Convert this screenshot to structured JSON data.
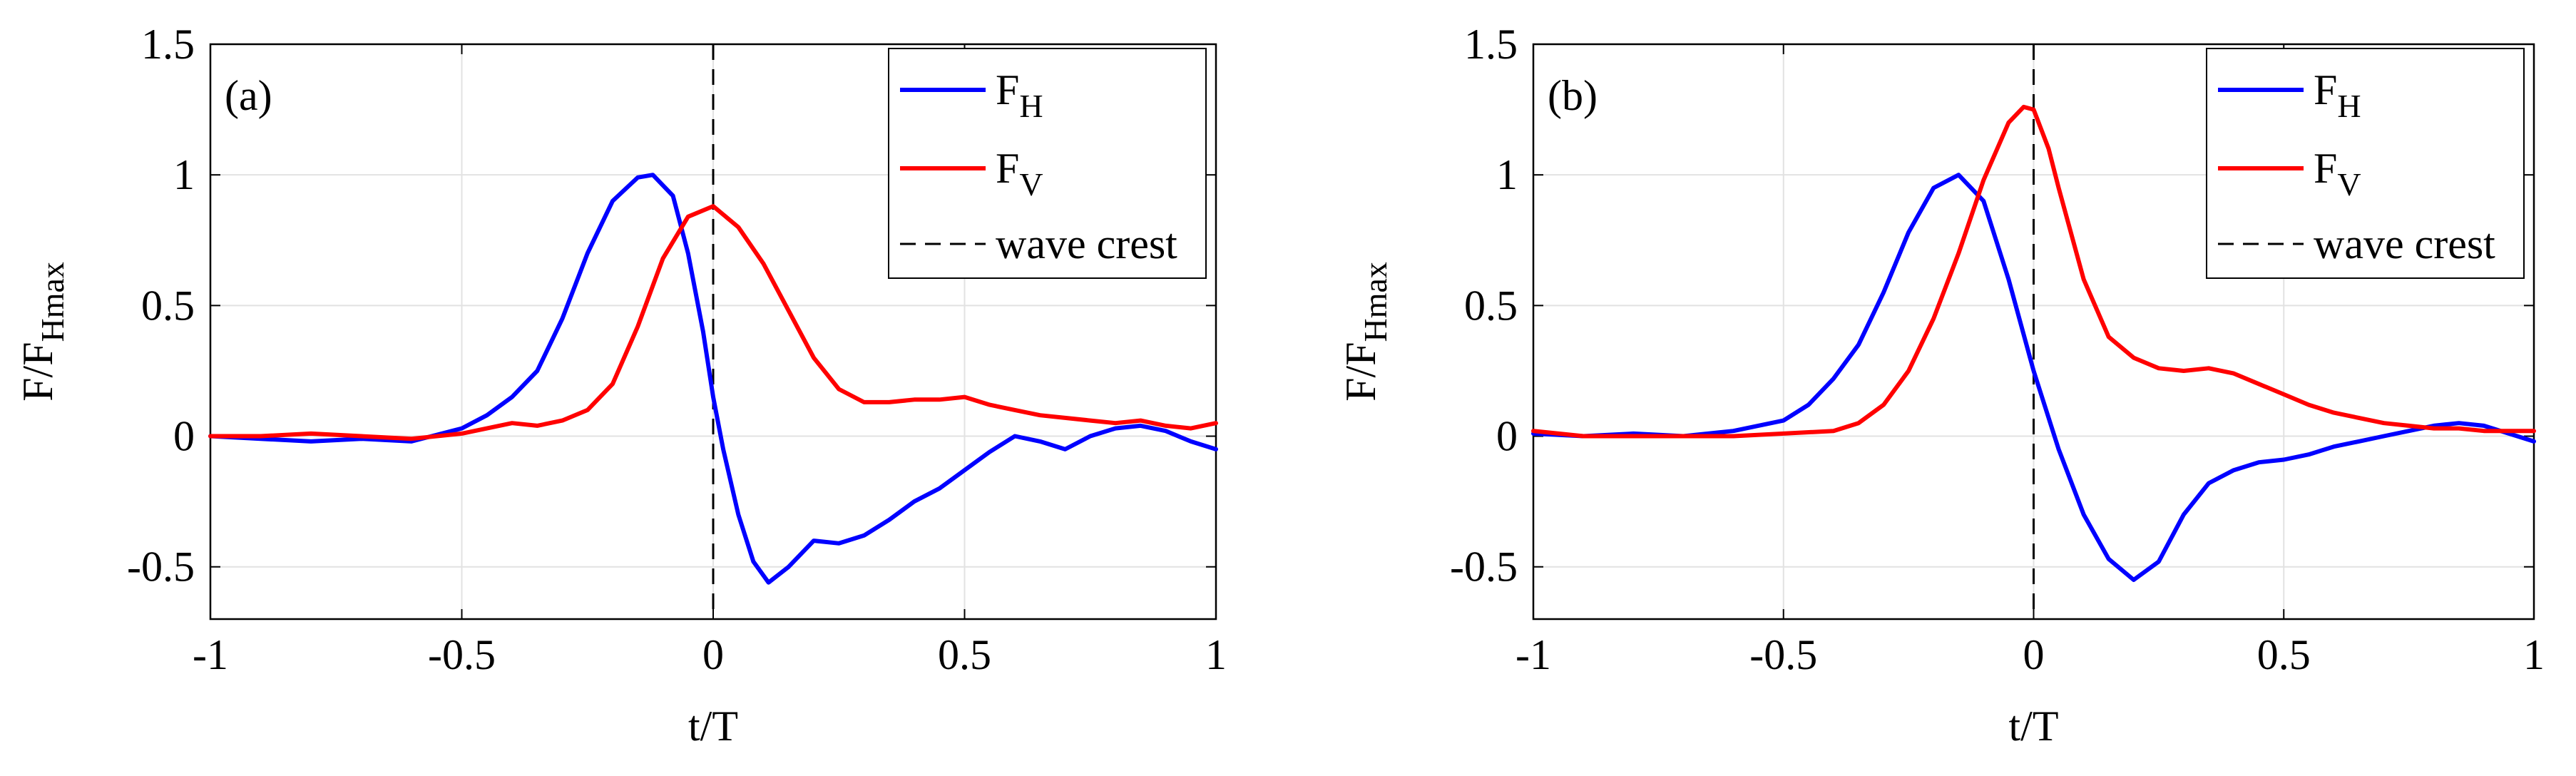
{
  "chart_data": [
    {
      "type": "line",
      "panel_label": "(a)",
      "xlabel": "t/T",
      "ylabel": {
        "base": "F/F",
        "sub": "Hmax"
      },
      "xlim": [
        -1,
        1
      ],
      "ylim": [
        -0.7,
        1.5
      ],
      "xticks": [
        -1,
        -0.5,
        0,
        0.5,
        1
      ],
      "xtick_labels": [
        "-1",
        "-0.5",
        "0",
        "0.5",
        "1"
      ],
      "yticks": [
        -0.5,
        0,
        0.5,
        1,
        1.5
      ],
      "ytick_labels": [
        "-0.5",
        "0",
        "0.5",
        "1",
        "1.5"
      ],
      "grid": true,
      "legend_position": "top-right",
      "vline": {
        "x": 0,
        "label": "wave crest",
        "color": "#000000"
      },
      "series": [
        {
          "name": "F_H",
          "label_base": "F",
          "label_sub": "H",
          "color": "#0000ff",
          "x": [
            -1,
            -0.9,
            -0.8,
            -0.7,
            -0.6,
            -0.5,
            -0.45,
            -0.4,
            -0.35,
            -0.3,
            -0.25,
            -0.2,
            -0.15,
            -0.12,
            -0.08,
            -0.05,
            -0.02,
            0,
            0.02,
            0.05,
            0.08,
            0.11,
            0.15,
            0.2,
            0.25,
            0.3,
            0.35,
            0.4,
            0.45,
            0.5,
            0.55,
            0.6,
            0.65,
            0.7,
            0.75,
            0.8,
            0.85,
            0.9,
            0.95,
            1
          ],
          "y": [
            0,
            -0.01,
            -0.02,
            -0.01,
            -0.02,
            0.03,
            0.08,
            0.15,
            0.25,
            0.45,
            0.7,
            0.9,
            0.99,
            1.0,
            0.92,
            0.7,
            0.4,
            0.15,
            -0.05,
            -0.3,
            -0.48,
            -0.56,
            -0.5,
            -0.4,
            -0.41,
            -0.38,
            -0.32,
            -0.25,
            -0.2,
            -0.13,
            -0.06,
            0.0,
            -0.02,
            -0.05,
            0.0,
            0.03,
            0.04,
            0.02,
            -0.02,
            -0.05
          ]
        },
        {
          "name": "F_V",
          "label_base": "F",
          "label_sub": "V",
          "color": "#ff0000",
          "x": [
            -1,
            -0.9,
            -0.8,
            -0.7,
            -0.6,
            -0.5,
            -0.45,
            -0.4,
            -0.35,
            -0.3,
            -0.25,
            -0.2,
            -0.15,
            -0.1,
            -0.05,
            0,
            0.05,
            0.1,
            0.15,
            0.2,
            0.25,
            0.3,
            0.35,
            0.4,
            0.45,
            0.5,
            0.55,
            0.6,
            0.65,
            0.7,
            0.75,
            0.8,
            0.85,
            0.9,
            0.95,
            1
          ],
          "y": [
            0,
            0,
            0.01,
            0,
            -0.01,
            0.01,
            0.03,
            0.05,
            0.04,
            0.06,
            0.1,
            0.2,
            0.42,
            0.68,
            0.84,
            0.88,
            0.8,
            0.66,
            0.48,
            0.3,
            0.18,
            0.13,
            0.13,
            0.14,
            0.14,
            0.15,
            0.12,
            0.1,
            0.08,
            0.07,
            0.06,
            0.05,
            0.06,
            0.04,
            0.03,
            0.05
          ]
        }
      ]
    },
    {
      "type": "line",
      "panel_label": "(b)",
      "xlabel": "t/T",
      "ylabel": {
        "base": "F/F",
        "sub": "Hmax"
      },
      "xlim": [
        -1,
        1
      ],
      "ylim": [
        -0.7,
        1.5
      ],
      "xticks": [
        -1,
        -0.5,
        0,
        0.5,
        1
      ],
      "xtick_labels": [
        "-1",
        "-0.5",
        "0",
        "0.5",
        "1"
      ],
      "yticks": [
        -0.5,
        0,
        0.5,
        1,
        1.5
      ],
      "ytick_labels": [
        "-0.5",
        "0",
        "0.5",
        "1",
        "1.5"
      ],
      "grid": true,
      "legend_position": "top-right",
      "vline": {
        "x": 0,
        "label": "wave crest",
        "color": "#000000"
      },
      "series": [
        {
          "name": "F_H",
          "label_base": "F",
          "label_sub": "H",
          "color": "#0000ff",
          "x": [
            -1,
            -0.9,
            -0.8,
            -0.7,
            -0.6,
            -0.5,
            -0.45,
            -0.4,
            -0.35,
            -0.3,
            -0.25,
            -0.2,
            -0.15,
            -0.1,
            -0.05,
            0,
            0.05,
            0.1,
            0.15,
            0.2,
            0.25,
            0.3,
            0.35,
            0.4,
            0.45,
            0.5,
            0.55,
            0.6,
            0.65,
            0.7,
            0.75,
            0.8,
            0.85,
            0.9,
            0.95,
            1
          ],
          "y": [
            0.01,
            0,
            0.01,
            0,
            0.02,
            0.06,
            0.12,
            0.22,
            0.35,
            0.55,
            0.78,
            0.95,
            1.0,
            0.9,
            0.6,
            0.25,
            -0.05,
            -0.3,
            -0.47,
            -0.55,
            -0.48,
            -0.3,
            -0.18,
            -0.13,
            -0.1,
            -0.09,
            -0.07,
            -0.04,
            -0.02,
            0.0,
            0.02,
            0.04,
            0.05,
            0.04,
            0.01,
            -0.02
          ]
        },
        {
          "name": "F_V",
          "label_base": "F",
          "label_sub": "V",
          "color": "#ff0000",
          "x": [
            -1,
            -0.9,
            -0.8,
            -0.7,
            -0.6,
            -0.5,
            -0.4,
            -0.35,
            -0.3,
            -0.25,
            -0.2,
            -0.15,
            -0.1,
            -0.05,
            -0.02,
            0,
            0.03,
            0.05,
            0.1,
            0.15,
            0.2,
            0.25,
            0.3,
            0.35,
            0.4,
            0.45,
            0.5,
            0.55,
            0.6,
            0.65,
            0.7,
            0.75,
            0.8,
            0.85,
            0.9,
            0.95,
            1
          ],
          "y": [
            0.02,
            0,
            0,
            0,
            0,
            0.01,
            0.02,
            0.05,
            0.12,
            0.25,
            0.45,
            0.7,
            0.98,
            1.2,
            1.26,
            1.25,
            1.1,
            0.95,
            0.6,
            0.38,
            0.3,
            0.26,
            0.25,
            0.26,
            0.24,
            0.2,
            0.16,
            0.12,
            0.09,
            0.07,
            0.05,
            0.04,
            0.03,
            0.03,
            0.02,
            0.02,
            0.02
          ]
        }
      ]
    }
  ]
}
